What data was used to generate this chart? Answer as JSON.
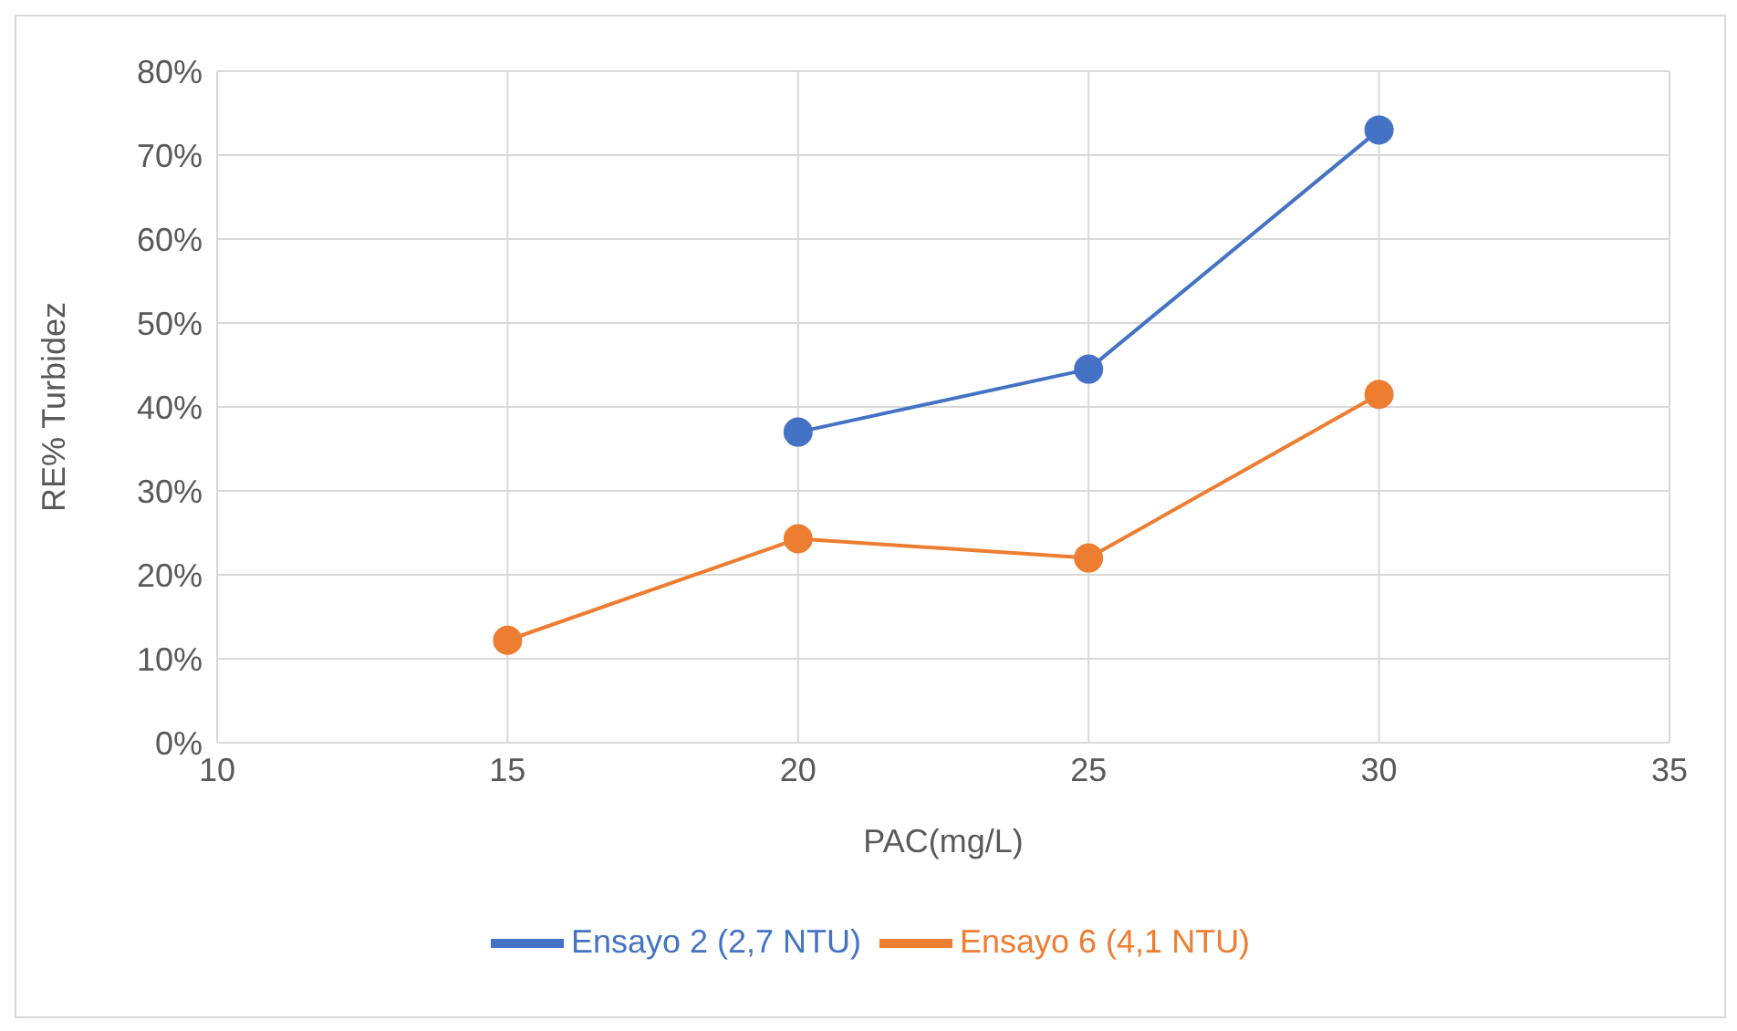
{
  "chart_data": {
    "type": "line",
    "xlabel": "PAC(mg/L)",
    "ylabel": "RE% Turbidez",
    "x": [
      15,
      20,
      25,
      30
    ],
    "series": [
      {
        "name": "Ensayo 2 (2,7 NTU)",
        "color": "#4472c4",
        "values": [
          null,
          37,
          44.5,
          73
        ]
      },
      {
        "name": "Ensayo 6 (4,1 NTU)",
        "color": "#ed7d31",
        "values": [
          12.2,
          24.3,
          22,
          41.5
        ]
      }
    ],
    "xlim": [
      10,
      35
    ],
    "xticks": [
      10,
      15,
      20,
      25,
      30,
      35
    ],
    "ylim": [
      0,
      80
    ],
    "yticks": [
      {
        "value": 0,
        "label": "0%"
      },
      {
        "value": 10,
        "label": "10%"
      },
      {
        "value": 20,
        "label": "20%"
      },
      {
        "value": 30,
        "label": "30%"
      },
      {
        "value": 40,
        "label": "40%"
      },
      {
        "value": 50,
        "label": "50%"
      },
      {
        "value": 60,
        "label": "60%"
      },
      {
        "value": 70,
        "label": "70%"
      },
      {
        "value": 80,
        "label": "80%"
      }
    ],
    "grid": true,
    "legend": "bottom",
    "marker": "circle",
    "line_style": "solid"
  }
}
